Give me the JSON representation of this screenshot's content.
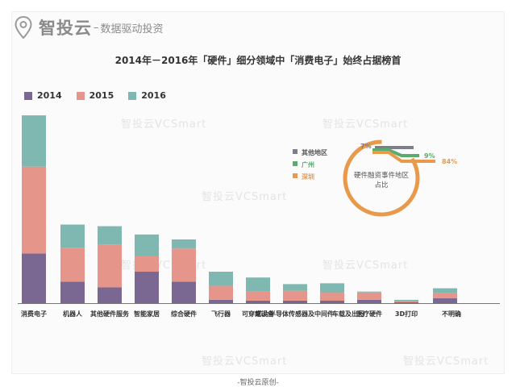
{
  "brand": {
    "name": "智投云",
    "sep": "–",
    "tagline": "数据驱动投资",
    "footer": "-智投云原创-"
  },
  "watermark_text": "智投云VCSmart",
  "colors": {
    "y2014": "#7a6792",
    "y2015": "#e6958a",
    "y2016": "#7eb8b0",
    "other": "#7d7d8c",
    "guangzhou": "#5aac6c",
    "shenzhen": "#e89a4a",
    "axis": "#777777"
  },
  "chart_data": [
    {
      "type": "bar",
      "stacked": true,
      "title": "2014年－2016年「硬件」细分领域中「消费电子」始终占据榜首",
      "legend_position": "top-left",
      "categories": [
        "消费电子",
        "机器人",
        "其他硬件服务",
        "智能家居",
        "综合硬件",
        "飞行器",
        "可穿戴设备",
        "芯片半导体传感器",
        "及中间件",
        "车载及出行",
        "医疗硬件",
        "3D打印",
        "不明确"
      ],
      "series": [
        {
          "name": "2014",
          "values": [
            60,
            26,
            19,
            38,
            26,
            4,
            3,
            3,
            3,
            3,
            4,
            1,
            6
          ]
        },
        {
          "name": "2015",
          "values": [
            105,
            41,
            52,
            19,
            40,
            17,
            11,
            12,
            10,
            11,
            9,
            1,
            6
          ]
        },
        {
          "name": "2016",
          "values": [
            62,
            28,
            22,
            26,
            11,
            17,
            17,
            8,
            11,
            8,
            1,
            2,
            6
          ]
        }
      ],
      "ylim": [
        0,
        230
      ]
    },
    {
      "type": "pie",
      "title": "硬件融资事件地区占比",
      "slices": [
        {
          "label": "其他地区",
          "value": 7,
          "display": "7%"
        },
        {
          "label": "广州",
          "value": 9,
          "display": "9%"
        },
        {
          "label": "深圳",
          "value": 84,
          "display": "84%"
        }
      ]
    }
  ]
}
